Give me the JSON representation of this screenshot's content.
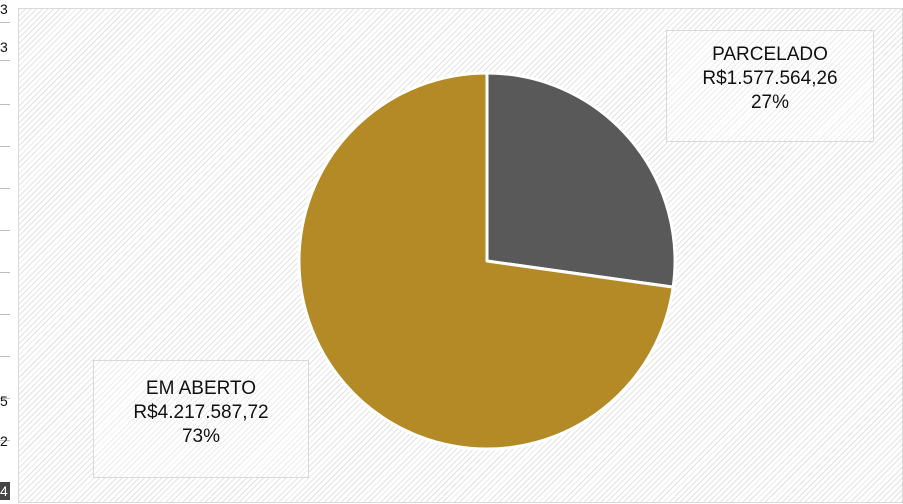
{
  "chart_data": {
    "type": "pie",
    "title": "",
    "slices": [
      {
        "name": "PARCELADO",
        "value": 1577564.26,
        "value_label": "R$1.577.564,26",
        "percent_label": "27%",
        "color": "#595959"
      },
      {
        "name": "EM ABERTO",
        "value": 4217587.72,
        "value_label": "R$4.217.587,72",
        "percent_label": "73%",
        "color": "#b38a26"
      }
    ],
    "start_angle_deg": 0,
    "direction": "clockwise",
    "legend": "none",
    "data_labels": "callout-boxes"
  },
  "left_strip": {
    "glyphs": [
      "3",
      "3",
      "5",
      "2",
      "4"
    ]
  },
  "colors": {
    "background_pattern": "#e3e3e3",
    "border": "#d9d9d9",
    "slice_separator": "#ffffff"
  }
}
